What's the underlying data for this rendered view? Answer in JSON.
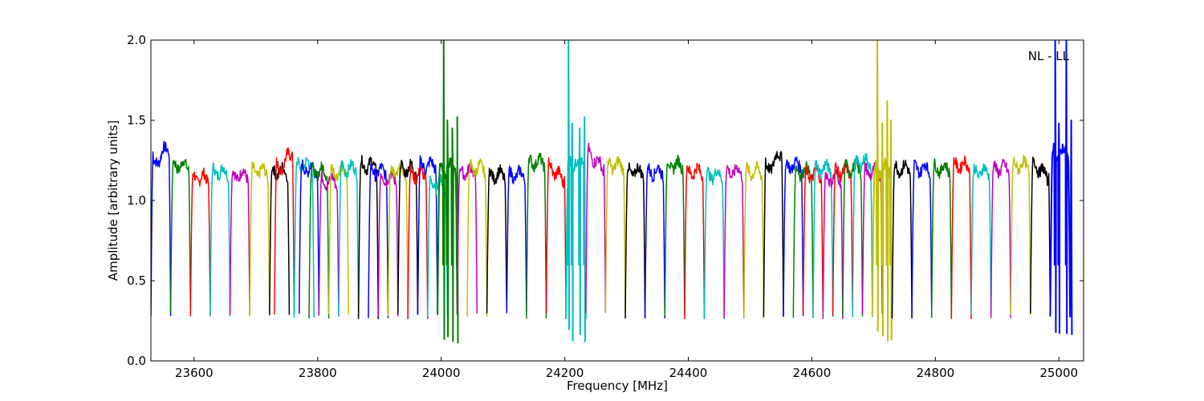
{
  "chart_data": {
    "type": "line",
    "title": "",
    "annotation": "NL - LL",
    "xlabel": "Frequency [MHz]",
    "ylabel": "Amplitude [arbitrary units]",
    "xlim": [
      23530,
      25040
    ],
    "ylim": [
      0.0,
      2.0
    ],
    "x_ticks": [
      23600,
      23800,
      24000,
      24200,
      24400,
      24600,
      24800,
      25000
    ],
    "y_ticks": [
      0.0,
      0.5,
      1.0,
      1.5,
      2.0
    ],
    "x_tick_labels": [
      "23600",
      "23800",
      "24000",
      "24200",
      "24400",
      "24600",
      "24800",
      "25000"
    ],
    "y_tick_labels": [
      "0.0",
      "0.5",
      "1.0",
      "1.5",
      "2.0"
    ],
    "grid": false,
    "legend": "none",
    "color_cycle": [
      "#0000ff",
      "#008000",
      "#ff0000",
      "#00bfbf",
      "#bf00bf",
      "#bfbf00",
      "#000000"
    ],
    "channel_width_mhz": 32,
    "channels": [
      {
        "start": 23530,
        "color": "#0000ff",
        "level": 1.34,
        "shape": "rise",
        "spikes": []
      },
      {
        "start": 23562,
        "color": "#008000",
        "level": 1.22,
        "shape": "flat",
        "spikes": []
      },
      {
        "start": 23594,
        "color": "#ff0000",
        "level": 1.14,
        "shape": "flat",
        "spikes": []
      },
      {
        "start": 23626,
        "color": "#00bfbf",
        "level": 1.18,
        "shape": "flat",
        "spikes": []
      },
      {
        "start": 23658,
        "color": "#bf00bf",
        "level": 1.16,
        "shape": "flat",
        "spikes": []
      },
      {
        "start": 23690,
        "color": "#bfbf00",
        "level": 1.18,
        "shape": "flat",
        "spikes": []
      },
      {
        "start": 23722,
        "color": "#000000",
        "level": 1.18,
        "shape": "flat",
        "spikes": []
      },
      {
        "start": 23730,
        "color": "#ff0000",
        "level": 1.3,
        "shape": "rise",
        "spikes": []
      },
      {
        "start": 23762,
        "color": "#00bfbf",
        "level": 1.22,
        "shape": "flat",
        "spikes": []
      },
      {
        "start": 23770,
        "color": "#0000ff",
        "level": 1.2,
        "shape": "flat",
        "spikes": []
      },
      {
        "start": 23786,
        "color": "#008000",
        "level": 1.18,
        "shape": "flat",
        "spikes": []
      },
      {
        "start": 23802,
        "color": "#bf00bf",
        "level": 1.12,
        "shape": "flat",
        "spikes": []
      },
      {
        "start": 23818,
        "color": "#bfbf00",
        "level": 1.18,
        "shape": "flat",
        "spikes": []
      },
      {
        "start": 23834,
        "color": "#00bfbf",
        "level": 1.2,
        "shape": "flat",
        "spikes": []
      },
      {
        "start": 23866,
        "color": "#000000",
        "level": 1.22,
        "shape": "flat",
        "spikes": []
      },
      {
        "start": 23882,
        "color": "#0000ff",
        "level": 1.18,
        "shape": "flat",
        "spikes": []
      },
      {
        "start": 23898,
        "color": "#bf00bf",
        "level": 1.14,
        "shape": "flat",
        "spikes": []
      },
      {
        "start": 23914,
        "color": "#bfbf00",
        "level": 1.18,
        "shape": "flat",
        "spikes": []
      },
      {
        "start": 23930,
        "color": "#000000",
        "level": 1.2,
        "shape": "flat",
        "spikes": []
      },
      {
        "start": 23946,
        "color": "#ff0000",
        "level": 1.16,
        "shape": "flat",
        "spikes": []
      },
      {
        "start": 23962,
        "color": "#0000ff",
        "level": 1.22,
        "shape": "flat",
        "spikes": []
      },
      {
        "start": 23978,
        "color": "#00bfbf",
        "level": 1.1,
        "shape": "flat",
        "spikes": []
      },
      {
        "start": 23994,
        "color": "#008000",
        "level": 1.2,
        "shape": "flat",
        "spikes": [
          [
            24004,
            2.0
          ],
          [
            24010,
            1.5
          ],
          [
            24018,
            1.45
          ],
          [
            24026,
            1.52
          ]
        ]
      },
      {
        "start": 24026,
        "color": "#bf00bf",
        "level": 1.18,
        "shape": "flat",
        "spikes": []
      },
      {
        "start": 24042,
        "color": "#bfbf00",
        "level": 1.2,
        "shape": "flat",
        "spikes": []
      },
      {
        "start": 24074,
        "color": "#000000",
        "level": 1.16,
        "shape": "flat",
        "spikes": []
      },
      {
        "start": 24106,
        "color": "#0000ff",
        "level": 1.16,
        "shape": "flat",
        "spikes": []
      },
      {
        "start": 24138,
        "color": "#008000",
        "level": 1.24,
        "shape": "flat",
        "spikes": []
      },
      {
        "start": 24170,
        "color": "#ff0000",
        "level": 1.22,
        "shape": "fall",
        "spikes": []
      },
      {
        "start": 24202,
        "color": "#00bfbf",
        "level": 1.24,
        "shape": "flat",
        "spikes": [
          [
            24206,
            2.0
          ],
          [
            24212,
            1.48
          ],
          [
            24224,
            1.45
          ],
          [
            24232,
            1.52
          ]
        ]
      },
      {
        "start": 24234,
        "color": "#bf00bf",
        "level": 1.3,
        "shape": "fall",
        "spikes": []
      },
      {
        "start": 24266,
        "color": "#bfbf00",
        "level": 1.22,
        "shape": "flat",
        "spikes": []
      },
      {
        "start": 24298,
        "color": "#000000",
        "level": 1.18,
        "shape": "flat",
        "spikes": []
      },
      {
        "start": 24330,
        "color": "#0000ff",
        "level": 1.18,
        "shape": "flat",
        "spikes": []
      },
      {
        "start": 24362,
        "color": "#008000",
        "level": 1.22,
        "shape": "flat",
        "spikes": []
      },
      {
        "start": 24394,
        "color": "#ff0000",
        "level": 1.18,
        "shape": "flat",
        "spikes": []
      },
      {
        "start": 24426,
        "color": "#00bfbf",
        "level": 1.16,
        "shape": "flat",
        "spikes": []
      },
      {
        "start": 24458,
        "color": "#bf00bf",
        "level": 1.18,
        "shape": "flat",
        "spikes": []
      },
      {
        "start": 24490,
        "color": "#bfbf00",
        "level": 1.18,
        "shape": "flat",
        "spikes": []
      },
      {
        "start": 24522,
        "color": "#000000",
        "level": 1.3,
        "shape": "rise",
        "spikes": []
      },
      {
        "start": 24554,
        "color": "#0000ff",
        "level": 1.22,
        "shape": "flat",
        "spikes": []
      },
      {
        "start": 24570,
        "color": "#008000",
        "level": 1.18,
        "shape": "flat",
        "spikes": []
      },
      {
        "start": 24586,
        "color": "#ff0000",
        "level": 1.16,
        "shape": "flat",
        "spikes": []
      },
      {
        "start": 24602,
        "color": "#00bfbf",
        "level": 1.2,
        "shape": "flat",
        "spikes": []
      },
      {
        "start": 24618,
        "color": "#bf00bf",
        "level": 1.14,
        "shape": "flat",
        "spikes": []
      },
      {
        "start": 24634,
        "color": "#ff0000",
        "level": 1.18,
        "shape": "flat",
        "spikes": []
      },
      {
        "start": 24650,
        "color": "#008000",
        "level": 1.2,
        "shape": "flat",
        "spikes": []
      },
      {
        "start": 24666,
        "color": "#00bfbf",
        "level": 1.24,
        "shape": "flat",
        "spikes": []
      },
      {
        "start": 24682,
        "color": "#bf00bf",
        "level": 1.18,
        "shape": "flat",
        "spikes": []
      },
      {
        "start": 24698,
        "color": "#bfbf00",
        "level": 1.2,
        "shape": "flat",
        "spikes": [
          [
            24706,
            2.0
          ],
          [
            24714,
            1.48
          ],
          [
            24722,
            1.62
          ],
          [
            24728,
            1.5
          ]
        ]
      },
      {
        "start": 24730,
        "color": "#000000",
        "level": 1.2,
        "shape": "flat",
        "spikes": []
      },
      {
        "start": 24762,
        "color": "#0000ff",
        "level": 1.2,
        "shape": "flat",
        "spikes": []
      },
      {
        "start": 24794,
        "color": "#008000",
        "level": 1.2,
        "shape": "flat",
        "spikes": []
      },
      {
        "start": 24826,
        "color": "#ff0000",
        "level": 1.22,
        "shape": "flat",
        "spikes": []
      },
      {
        "start": 24858,
        "color": "#00bfbf",
        "level": 1.18,
        "shape": "flat",
        "spikes": []
      },
      {
        "start": 24890,
        "color": "#bf00bf",
        "level": 1.2,
        "shape": "flat",
        "spikes": []
      },
      {
        "start": 24922,
        "color": "#bfbf00",
        "level": 1.22,
        "shape": "flat",
        "spikes": []
      },
      {
        "start": 24954,
        "color": "#000000",
        "level": 1.24,
        "shape": "fall",
        "spikes": []
      },
      {
        "start": 24986,
        "color": "#0000ff",
        "level": 1.3,
        "shape": "flat",
        "spikes": [
          [
            24994,
            2.0
          ],
          [
            25000,
            1.48
          ],
          [
            25012,
            2.0
          ],
          [
            25020,
            1.5
          ]
        ]
      }
    ]
  }
}
